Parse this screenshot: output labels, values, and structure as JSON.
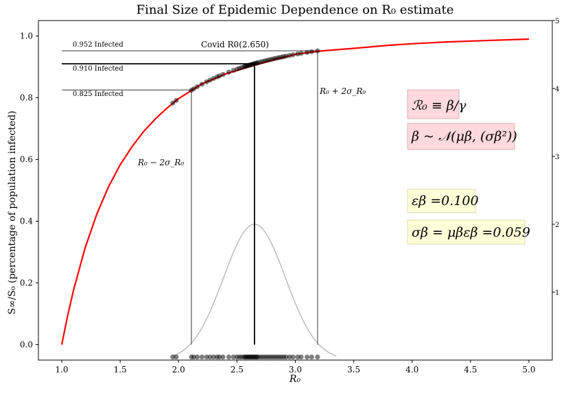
{
  "chart_data": {
    "type": "line",
    "title": "Final Size of Epidemic Dependence on R₀ estimate",
    "xlabel": "R₀",
    "ylabel": "S∞/S₀ (percentage of population infected)",
    "xlim": [
      0.8,
      5.2
    ],
    "ylim": [
      -0.05,
      1.05
    ],
    "y2lim": [
      0,
      5
    ],
    "x_ticks": [
      "1.0",
      "1.5",
      "2.0",
      "2.5",
      "3.0",
      "3.5",
      "4.0",
      "4.5",
      "5.0"
    ],
    "y_ticks": [
      "0.0",
      "0.2",
      "0.4",
      "0.6",
      "0.8",
      "1.0"
    ],
    "y2_ticks": [
      "1",
      "2",
      "3",
      "4",
      "5"
    ],
    "grid": false,
    "colors": {
      "curve": "#ff0000",
      "density": "#bbbbbb",
      "lines": "#777777",
      "mean_line": "#000000",
      "pink_box": "#ffd9de",
      "yellow_box": "#ffffd9"
    },
    "final_size_curve": {
      "x": [
        1.0,
        1.05,
        1.1,
        1.2,
        1.3,
        1.4,
        1.5,
        1.6,
        1.7,
        1.8,
        1.9,
        2.0,
        2.2,
        2.4,
        2.6,
        2.8,
        3.0,
        3.2,
        3.5,
        3.8,
        4.0,
        4.3,
        4.6,
        5.0
      ],
      "y": [
        0.0,
        0.094,
        0.176,
        0.314,
        0.423,
        0.511,
        0.583,
        0.641,
        0.69,
        0.731,
        0.766,
        0.797,
        0.845,
        0.877,
        0.9,
        0.921,
        0.941,
        0.951,
        0.96,
        0.97,
        0.975,
        0.981,
        0.985,
        0.99
      ]
    },
    "mean": {
      "r0": 2.65,
      "infected": 0.91,
      "label": "Covid R0(2.650)",
      "infected_label": "0.910 Infected"
    },
    "lower": {
      "r0": 2.11,
      "infected": 0.825,
      "label": "R₀ − 2σ_R₀",
      "infected_label": "0.825 Infected"
    },
    "upper": {
      "r0": 3.19,
      "infected": 0.952,
      "label": "R₀ + 2σ_R₀",
      "infected_label": "0.952 Infected"
    },
    "density": {
      "mean": 2.65,
      "sd": 0.265,
      "peak": 2.0
    },
    "samples": [
      1.95,
      1.98,
      2.11,
      2.13,
      2.16,
      2.2,
      2.24,
      2.27,
      2.3,
      2.33,
      2.35,
      2.38,
      2.43,
      2.47,
      2.5,
      2.52,
      2.54,
      2.56,
      2.57,
      2.58,
      2.59,
      2.6,
      2.61,
      2.62,
      2.63,
      2.64,
      2.65,
      2.66,
      2.67,
      2.68,
      2.7,
      2.72,
      2.74,
      2.76,
      2.78,
      2.8,
      2.82,
      2.84,
      2.86,
      2.88,
      2.9,
      2.92,
      2.95,
      2.98,
      3.02,
      3.05,
      3.1,
      3.14,
      3.19
    ],
    "annotations": {
      "r0_definition": "ℛ₀ ≡ β/γ",
      "beta_distribution": "β ~ 𝒩(μβ, (σβ²))",
      "epsilon": "εβ =0.100",
      "sigma": "σβ = μβεβ =0.059"
    }
  }
}
